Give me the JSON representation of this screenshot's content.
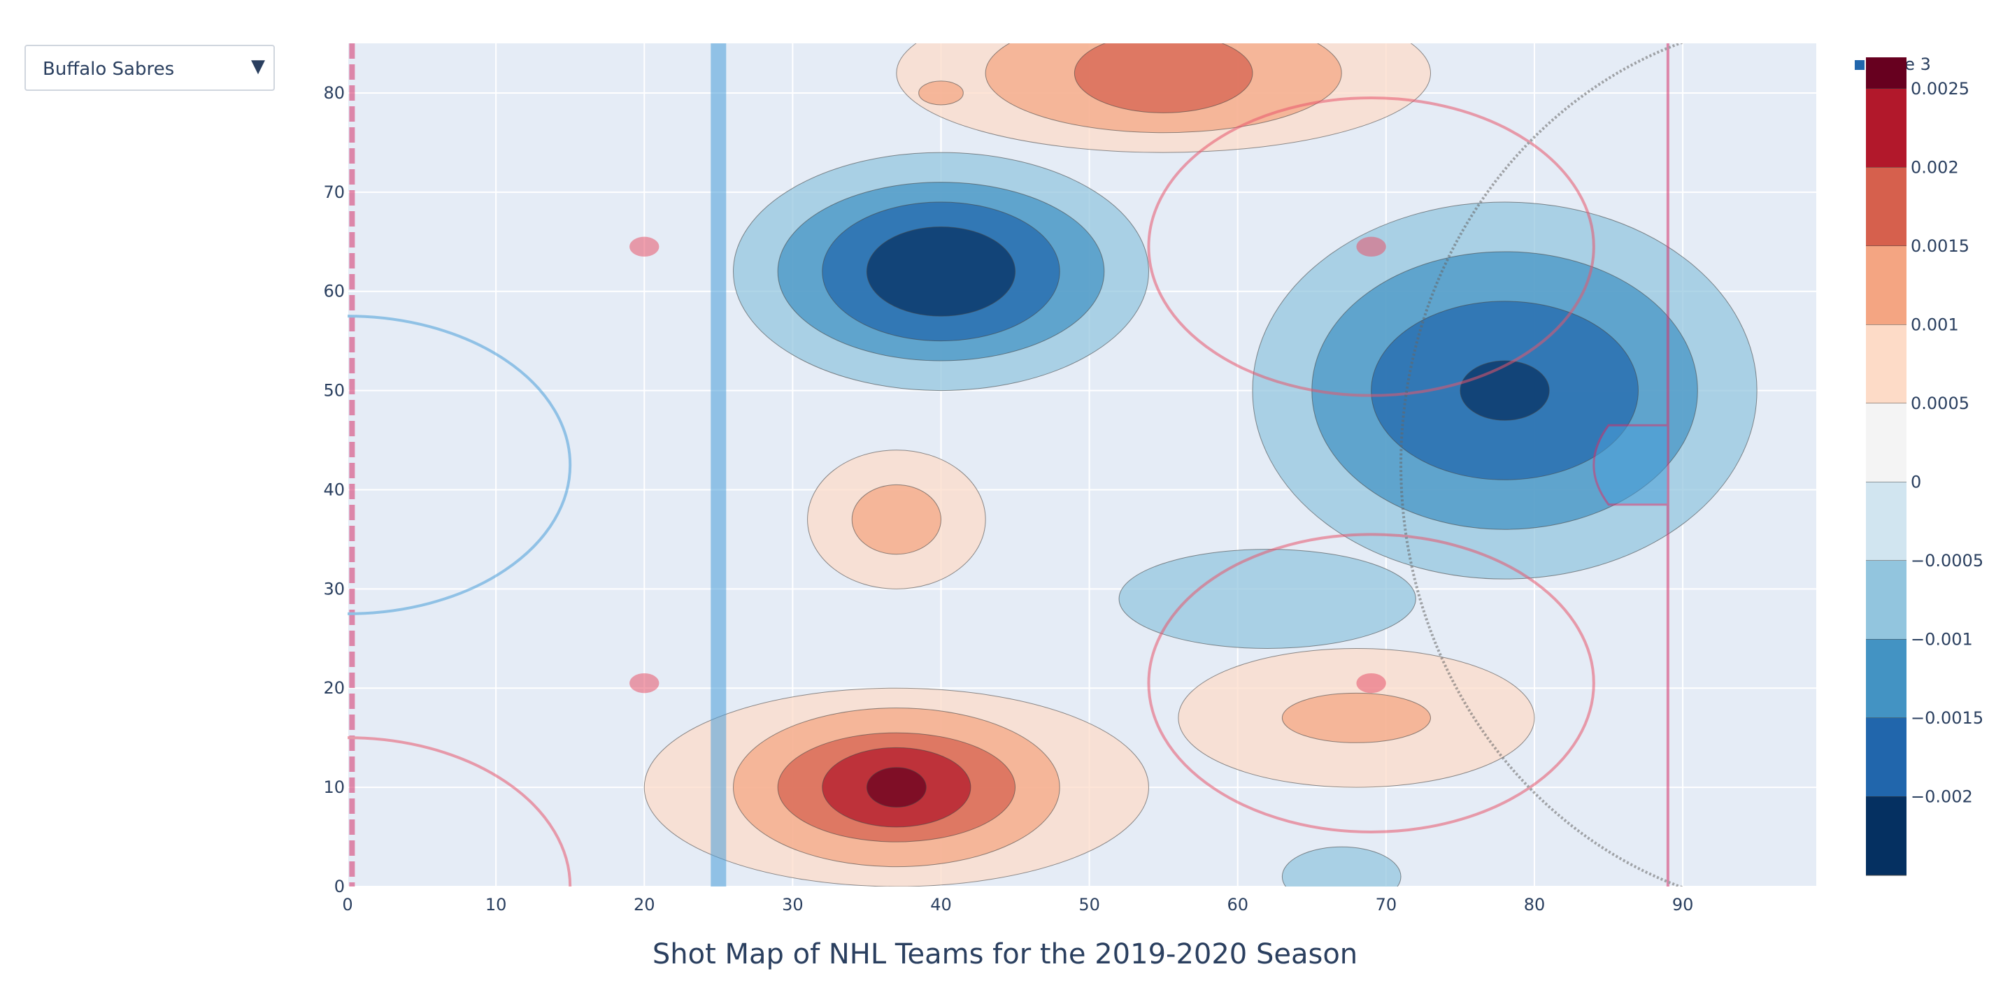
{
  "team_selector": {
    "selected": "Buffalo Sabres",
    "caret": "▼"
  },
  "chart_data": {
    "type": "heatmap",
    "subtype": "filled-contour",
    "title": "Shot Map of NHL Teams for the 2019-2020 Season",
    "xlabel": "",
    "ylabel": "",
    "xlim": [
      0,
      99
    ],
    "ylim": [
      0,
      85
    ],
    "x_ticks": [
      0,
      10,
      20,
      30,
      40,
      50,
      60,
      70,
      80,
      90
    ],
    "y_ticks": [
      0,
      10,
      20,
      30,
      40,
      50,
      60,
      70,
      80
    ],
    "grid": true,
    "legend": {
      "entries": [
        "trace 3"
      ],
      "placement": "top-right"
    },
    "colorscale": "RdBu (reversed)",
    "colorbar": {
      "range": [
        -0.0025,
        0.0027
      ],
      "tick_labels": [
        "0.0025",
        "0.002",
        "0.0015",
        "0.001",
        "0.0005",
        "0",
        "−0.0005",
        "−0.001",
        "−0.0015",
        "−0.002"
      ],
      "tick_values": [
        0.0025,
        0.002,
        0.0015,
        0.001,
        0.0005,
        0,
        -0.0005,
        -0.001,
        -0.0015,
        -0.002
      ],
      "bands": [
        {
          "from": 0.0025,
          "to": 0.0027,
          "color": "#67001f"
        },
        {
          "from": 0.002,
          "to": 0.0025,
          "color": "#b2182b"
        },
        {
          "from": 0.0015,
          "to": 0.002,
          "color": "#d6604d"
        },
        {
          "from": 0.001,
          "to": 0.0015,
          "color": "#f4a582"
        },
        {
          "from": 0.0005,
          "to": 0.001,
          "color": "#fddbc7"
        },
        {
          "from": 0,
          "to": 0.0005,
          "color": "#f4f4f4"
        },
        {
          "from": -0.0005,
          "to": 0,
          "color": "#d1e5f0"
        },
        {
          "from": -0.001,
          "to": -0.0005,
          "color": "#92c5de"
        },
        {
          "from": -0.0015,
          "to": -0.001,
          "color": "#4393c3"
        },
        {
          "from": -0.002,
          "to": -0.0015,
          "color": "#2166ac"
        },
        {
          "from": -0.0025,
          "to": -0.002,
          "color": "#053061"
        }
      ]
    },
    "contours": [
      {
        "name": "top-center",
        "sign": "positive",
        "center": [
          55,
          82
        ],
        "rings": [
          {
            "level": 0.0005,
            "rx": 18,
            "ry": 8
          },
          {
            "level": 0.001,
            "rx": 12,
            "ry": 6
          },
          {
            "level": 0.0015,
            "rx": 6,
            "ry": 4
          }
        ]
      },
      {
        "name": "top-small",
        "sign": "positive",
        "center": [
          40,
          80
        ],
        "rings": [
          {
            "level": 0.001,
            "rx": 1.5,
            "ry": 1.2
          }
        ]
      },
      {
        "name": "upper-left-cold",
        "sign": "negative",
        "center": [
          40,
          62
        ],
        "rings": [
          {
            "level": -0.0005,
            "rx": 14,
            "ry": 12
          },
          {
            "level": -0.001,
            "rx": 11,
            "ry": 9
          },
          {
            "level": -0.0015,
            "rx": 8,
            "ry": 7
          },
          {
            "level": -0.002,
            "rx": 5,
            "ry": 4.5
          }
        ]
      },
      {
        "name": "mid-left-warm",
        "sign": "positive",
        "center": [
          37,
          37
        ],
        "rings": [
          {
            "level": 0.0005,
            "rx": 6,
            "ry": 7
          },
          {
            "level": 0.001,
            "rx": 3,
            "ry": 3.5
          }
        ]
      },
      {
        "name": "bottom-left-warm",
        "sign": "positive",
        "center": [
          37,
          10
        ],
        "rings": [
          {
            "level": 0.0005,
            "rx": 17,
            "ry": 10
          },
          {
            "level": 0.001,
            "rx": 11,
            "ry": 8
          },
          {
            "level": 0.0015,
            "rx": 8,
            "ry": 5.5
          },
          {
            "level": 0.002,
            "rx": 5,
            "ry": 4
          },
          {
            "level": 0.0025,
            "rx": 2,
            "ry": 2
          }
        ]
      },
      {
        "name": "slot-warm",
        "sign": "positive",
        "center": [
          68,
          17
        ],
        "rings": [
          {
            "level": 0.0005,
            "rx": 12,
            "ry": 7
          },
          {
            "level": 0.001,
            "rx": 5,
            "ry": 2.5
          }
        ]
      },
      {
        "name": "net-cold",
        "sign": "negative",
        "center": [
          78,
          50
        ],
        "rings": [
          {
            "level": -0.0005,
            "rx": 17,
            "ry": 19
          },
          {
            "level": -0.001,
            "rx": 13,
            "ry": 14
          },
          {
            "level": -0.0015,
            "rx": 9,
            "ry": 9
          },
          {
            "level": -0.002,
            "rx": 3,
            "ry": 3
          }
        ]
      },
      {
        "name": "lower-cold",
        "sign": "negative",
        "center": [
          62,
          29
        ],
        "rings": [
          {
            "level": -0.0005,
            "rx": 10,
            "ry": 5
          }
        ]
      },
      {
        "name": "bottom-cold",
        "sign": "negative",
        "center": [
          67,
          1
        ],
        "rings": [
          {
            "level": -0.0005,
            "rx": 4,
            "ry": 3
          }
        ]
      }
    ],
    "rink_markings": {
      "red_line_x": 0.3,
      "blue_line_x": 25,
      "goal_line_x": 89,
      "faceoff_circles": [
        {
          "x": 69,
          "y": 64.5,
          "r": 15
        },
        {
          "x": 69,
          "y": 20.5,
          "r": 15
        }
      ],
      "neutral_dots": [
        {
          "x": 20,
          "y": 64.5
        },
        {
          "x": 20,
          "y": 20.5
        }
      ],
      "center_circle": {
        "x": 0,
        "y": 42.5,
        "r": 15
      }
    }
  }
}
